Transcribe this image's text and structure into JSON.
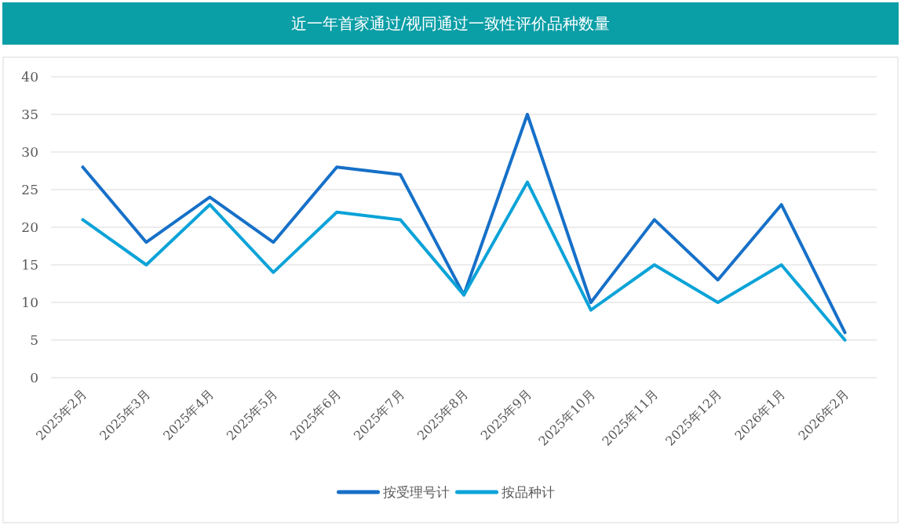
{
  "chart_data": {
    "type": "line",
    "title": "近一年首家通过/视同通过一致性评价品种数量",
    "categories": [
      "2025年2月",
      "2025年3月",
      "2025年4月",
      "2025年5月",
      "2025年6月",
      "2025年7月",
      "2025年8月",
      "2025年9月",
      "2025年10月",
      "2025年11月",
      "2025年12月",
      "2026年1月",
      "2026年2月"
    ],
    "series": [
      {
        "name": "按受理号计",
        "color": "#1670c8",
        "values": [
          28,
          18,
          24,
          18,
          28,
          27,
          11,
          35,
          10,
          21,
          13,
          23,
          6
        ]
      },
      {
        "name": "按品种计",
        "color": "#0ba3d8",
        "values": [
          21,
          15,
          23,
          14,
          22,
          21,
          11,
          26,
          9,
          15,
          10,
          15,
          5
        ]
      }
    ],
    "ylim": [
      0,
      40
    ],
    "yticks": [
      0,
      5,
      10,
      15,
      20,
      25,
      30,
      35,
      40
    ],
    "grid": "y",
    "legend": "bottom",
    "marker": "none",
    "line_style": "solid"
  }
}
